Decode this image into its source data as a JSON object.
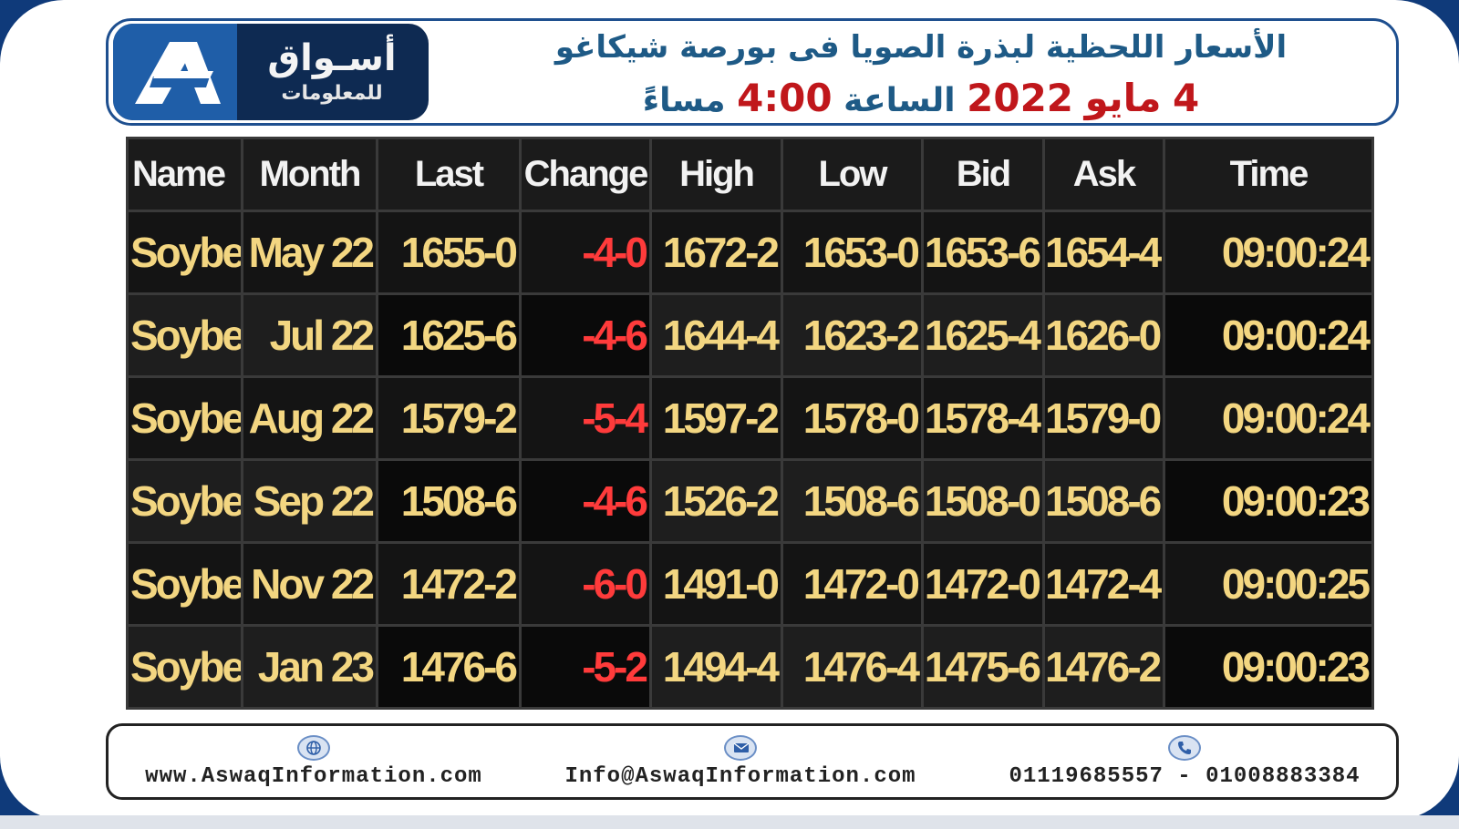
{
  "header": {
    "logo": {
      "name_ar": "أسـواق",
      "sub_ar": "للمعلومات"
    },
    "title_line1": "الأسعار اللحظية لبذرة الصويا فى بورصة شيكاغو",
    "title_line2": {
      "day": "4",
      "month": "مايو",
      "year": "2022",
      "at": "الساعة",
      "time": "4:00",
      "period": "مساءً"
    }
  },
  "table": {
    "columns": [
      "Name",
      "Month",
      "Last",
      "Change",
      "High",
      "Low",
      "Bid",
      "Ask",
      "Time"
    ],
    "rows": [
      [
        "Soybean",
        "May 22",
        "1655-0",
        "-4-0",
        "1672-2",
        "1653-0",
        "1653-6",
        "1654-4",
        "09:00:24"
      ],
      [
        "Soybean",
        "Jul 22",
        "1625-6",
        "-4-6",
        "1644-4",
        "1623-2",
        "1625-4",
        "1626-0",
        "09:00:24"
      ],
      [
        "Soybean",
        "Aug 22",
        "1579-2",
        "-5-4",
        "1597-2",
        "1578-0",
        "1578-4",
        "1579-0",
        "09:00:24"
      ],
      [
        "Soybean",
        "Sep 22",
        "1508-6",
        "-4-6",
        "1526-2",
        "1508-6",
        "1508-0",
        "1508-6",
        "09:00:23"
      ],
      [
        "Soybean",
        "Nov 22",
        "1472-2",
        "-6-0",
        "1491-0",
        "1472-0",
        "1472-0",
        "1472-4",
        "09:00:25"
      ],
      [
        "Soybean",
        "Jan 23",
        "1476-6",
        "-5-2",
        "1494-4",
        "1476-4",
        "1475-6",
        "1476-2",
        "09:00:23"
      ]
    ]
  },
  "footer": {
    "website": "www.AswaqInformation.com",
    "email": "Info@AswaqInformation.com",
    "phones": "01119685557 - 01008883384",
    "icons": [
      "globe-icon",
      "mail-icon",
      "phone-icon"
    ]
  },
  "colors": {
    "brand_blue": "#1e5a86",
    "accent_red": "#c0171b",
    "price_yellow": "#f3d681",
    "change_red": "#ff3b3b"
  }
}
